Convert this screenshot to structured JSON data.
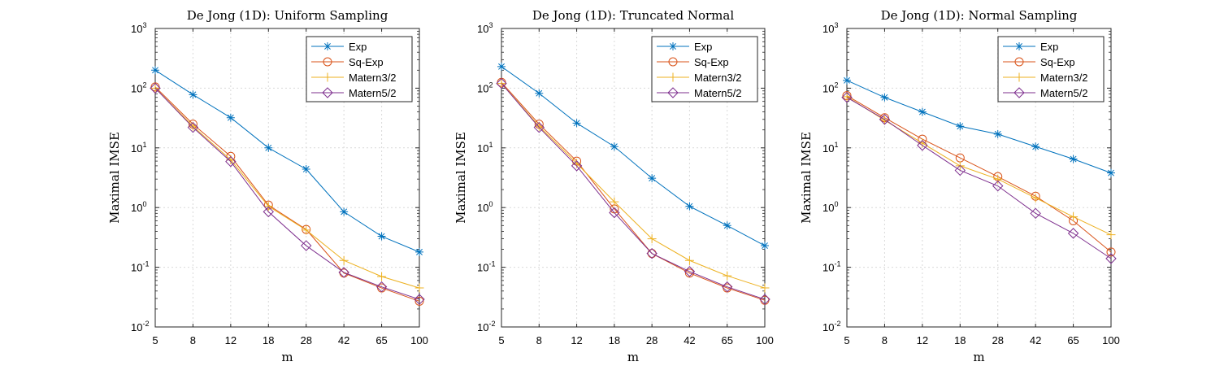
{
  "chart_data": [
    {
      "type": "line",
      "title": "De Jong (1D): Uniform Sampling",
      "xlabel": "m",
      "ylabel": "Maximal IMSE",
      "x": [
        5,
        8,
        12,
        18,
        28,
        42,
        65,
        100
      ],
      "yscale": "log",
      "ylim": [
        0.01,
        1000
      ],
      "grid": true,
      "legend_position": "top-right",
      "series": [
        {
          "name": "Exp",
          "values": [
            200,
            78,
            32,
            10,
            4.4,
            0.85,
            0.33,
            0.18
          ]
        },
        {
          "name": "Sq-Exp",
          "values": [
            105,
            25,
            7.2,
            1.1,
            0.43,
            0.08,
            0.045,
            0.027
          ]
        },
        {
          "name": "Matern3/2",
          "values": [
            100,
            23,
            6.3,
            1.05,
            0.42,
            0.13,
            0.07,
            0.045
          ]
        },
        {
          "name": "Matern5/2",
          "values": [
            100,
            22,
            5.9,
            0.85,
            0.23,
            0.082,
            0.047,
            0.029
          ]
        }
      ]
    },
    {
      "type": "line",
      "title": "De Jong (1D): Truncated Normal",
      "xlabel": "m",
      "ylabel": "Maximal IMSE",
      "x": [
        5,
        8,
        12,
        18,
        28,
        42,
        65,
        100
      ],
      "yscale": "log",
      "ylim": [
        0.01,
        1000
      ],
      "grid": true,
      "legend_position": "top-right",
      "series": [
        {
          "name": "Exp",
          "values": [
            230,
            82,
            26,
            10.5,
            3.1,
            1.05,
            0.5,
            0.23
          ]
        },
        {
          "name": "Sq-Exp",
          "values": [
            125,
            25,
            6,
            0.95,
            0.17,
            0.08,
            0.045,
            0.028
          ]
        },
        {
          "name": "Matern3/2",
          "values": [
            120,
            23,
            5.5,
            1.25,
            0.3,
            0.13,
            0.072,
            0.045
          ]
        },
        {
          "name": "Matern5/2",
          "values": [
            120,
            22,
            5,
            0.82,
            0.17,
            0.085,
            0.047,
            0.029
          ]
        }
      ]
    },
    {
      "type": "line",
      "title": "De Jong (1D): Normal Sampling",
      "xlabel": "m",
      "ylabel": "Maximal IMSE",
      "x": [
        5,
        8,
        12,
        18,
        28,
        42,
        65,
        100
      ],
      "yscale": "log",
      "ylim": [
        0.01,
        1000
      ],
      "grid": true,
      "legend_position": "top-right",
      "series": [
        {
          "name": "Exp",
          "values": [
            135,
            70,
            40,
            23,
            17,
            10.5,
            6.5,
            3.8
          ]
        },
        {
          "name": "Sq-Exp",
          "values": [
            75,
            32,
            14,
            6.8,
            3.3,
            1.55,
            0.6,
            0.18
          ]
        },
        {
          "name": "Matern3/2",
          "values": [
            72,
            29,
            12,
            5,
            3,
            1.45,
            0.7,
            0.35
          ]
        },
        {
          "name": "Matern5/2",
          "values": [
            70,
            30,
            11,
            4.2,
            2.3,
            0.8,
            0.37,
            0.14
          ]
        }
      ]
    }
  ],
  "tick_labels": {
    "x": [
      "5",
      "8",
      "12",
      "18",
      "28",
      "42",
      "65",
      "100"
    ],
    "y": [
      {
        "base": "10",
        "exp": "-2"
      },
      {
        "base": "10",
        "exp": "-1"
      },
      {
        "base": "10",
        "exp": "0"
      },
      {
        "base": "10",
        "exp": "1"
      },
      {
        "base": "10",
        "exp": "2"
      },
      {
        "base": "10",
        "exp": "3"
      }
    ]
  },
  "colors": {
    "Exp": "#0072BD",
    "Sq-Exp": "#D95319",
    "Matern3/2": "#EDB120",
    "Matern5/2": "#7E2F8E"
  },
  "markers": {
    "Exp": "star",
    "Sq-Exp": "circle",
    "Matern3/2": "plus",
    "Matern5/2": "diamond"
  }
}
